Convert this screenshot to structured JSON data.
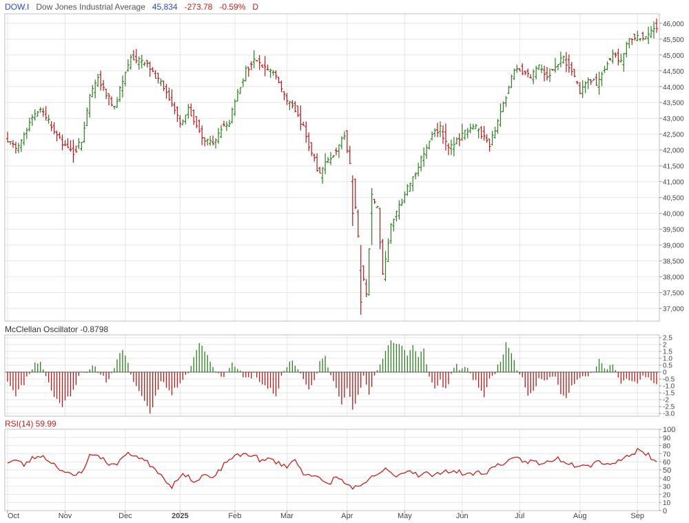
{
  "header": {
    "symbol": "DOW.I",
    "name": "Dow Jones Industrial Average",
    "last": "45,834",
    "change": "-273.78",
    "change_pct": "-0.59%",
    "period": "D"
  },
  "mcclellan": {
    "title": "McClellan Oscillator -0.8798"
  },
  "rsi": {
    "title": "RSI(14) 59.99"
  },
  "colors": {
    "up": "#2a7d1e",
    "down": "#b01818",
    "rsi_line": "#c81e1e",
    "grid": "#e6e6e6",
    "frame": "#bfbfbf"
  },
  "chart_data": [
    {
      "type": "bar",
      "subtype": "ohlc",
      "series_name": "DOW.I",
      "x_ticks": [
        "Oct",
        "Nov",
        "Dec",
        "2025",
        "Feb",
        "Mar",
        "Apr",
        "May",
        "Jun",
        "Jul",
        "Aug",
        "Sep"
      ],
      "y_ticks": [
        "46,000",
        "45,500",
        "45,000",
        "44,500",
        "44,000",
        "43,500",
        "43,000",
        "42,500",
        "42,000",
        "41,500",
        "41,000",
        "40,500",
        "40,000",
        "39,500",
        "39,000",
        "38,500",
        "38,000",
        "37,500",
        "37,000"
      ],
      "ylim": [
        36600,
        46300
      ],
      "y_axis_side": "right",
      "grid": true,
      "close_anchors": [
        [
          0,
          42300
        ],
        [
          3,
          42000
        ],
        [
          6,
          42500
        ],
        [
          9,
          43100
        ],
        [
          12,
          43250
        ],
        [
          15,
          42900
        ],
        [
          18,
          42500
        ],
        [
          21,
          42100
        ],
        [
          24,
          41900
        ],
        [
          27,
          42300
        ],
        [
          30,
          43700
        ],
        [
          33,
          44300
        ],
        [
          36,
          43800
        ],
        [
          39,
          43300
        ],
        [
          42,
          44200
        ],
        [
          45,
          44900
        ],
        [
          48,
          44800
        ],
        [
          51,
          44700
        ],
        [
          54,
          44300
        ],
        [
          57,
          44000
        ],
        [
          60,
          43500
        ],
        [
          63,
          42800
        ],
        [
          66,
          43300
        ],
        [
          69,
          42800
        ],
        [
          72,
          42300
        ],
        [
          75,
          42200
        ],
        [
          78,
          42700
        ],
        [
          81,
          42900
        ],
        [
          84,
          43800
        ],
        [
          87,
          44500
        ],
        [
          90,
          44850
        ],
        [
          93,
          44600
        ],
        [
          96,
          44500
        ],
        [
          99,
          44200
        ],
        [
          102,
          43500
        ],
        [
          105,
          43300
        ],
        [
          108,
          42700
        ],
        [
          111,
          41900
        ],
        [
          114,
          41200
        ],
        [
          117,
          41700
        ],
        [
          120,
          42000
        ],
        [
          123,
          42500
        ],
        [
          126,
          41100
        ],
        [
          129,
          38300
        ],
        [
          131,
          37500
        ],
        [
          133,
          40400
        ],
        [
          135,
          40200
        ],
        [
          137,
          38000
        ],
        [
          140,
          39600
        ],
        [
          143,
          40200
        ],
        [
          146,
          40800
        ],
        [
          149,
          41300
        ],
        [
          152,
          41900
        ],
        [
          155,
          42500
        ],
        [
          158,
          42700
        ],
        [
          161,
          42000
        ],
        [
          164,
          42300
        ],
        [
          167,
          42600
        ],
        [
          170,
          42800
        ],
        [
          173,
          42500
        ],
        [
          176,
          42200
        ],
        [
          179,
          42900
        ],
        [
          182,
          43700
        ],
        [
          185,
          44600
        ],
        [
          188,
          44500
        ],
        [
          191,
          44300
        ],
        [
          194,
          44600
        ],
        [
          197,
          44300
        ],
        [
          200,
          44700
        ],
        [
          203,
          44900
        ],
        [
          206,
          44500
        ],
        [
          209,
          43800
        ],
        [
          212,
          44300
        ],
        [
          215,
          44100
        ],
        [
          218,
          44600
        ],
        [
          221,
          45100
        ],
        [
          224,
          44800
        ],
        [
          227,
          45500
        ],
        [
          230,
          45600
        ],
        [
          233,
          45500
        ],
        [
          236,
          45900
        ],
        [
          237,
          45834
        ]
      ],
      "ohlc_sample": [
        [
          126,
          41000,
          41200,
          39600,
          40000
        ],
        [
          129,
          38200,
          39000,
          36800,
          37200
        ],
        [
          133,
          40000,
          40800,
          39000,
          40600
        ],
        [
          237,
          46000,
          46150,
          45700,
          45834
        ]
      ]
    },
    {
      "type": "bar",
      "series_name": "McClellan Oscillator",
      "y_ticks": [
        "2.5",
        "2",
        "1.5",
        "1.0",
        "0.5",
        "0",
        "-0.5",
        "-1.0",
        "-1.5",
        "-2",
        "-2.5",
        "-3.0"
      ],
      "ylim": [
        -3.2,
        2.7
      ],
      "last_value": -0.8798,
      "value_anchors": [
        [
          0,
          -0.6
        ],
        [
          3,
          -1.6
        ],
        [
          6,
          -0.8
        ],
        [
          8,
          0.0
        ],
        [
          10,
          0.6
        ],
        [
          12,
          0.8
        ],
        [
          14,
          -0.3
        ],
        [
          17,
          -1.8
        ],
        [
          20,
          -2.4
        ],
        [
          23,
          -1.6
        ],
        [
          25,
          -0.8
        ],
        [
          27,
          0.2
        ],
        [
          29,
          -0.2
        ],
        [
          31,
          0.4
        ],
        [
          33,
          0.1
        ],
        [
          36,
          -0.6
        ],
        [
          38,
          -0.2
        ],
        [
          40,
          1.0
        ],
        [
          42,
          1.5
        ],
        [
          44,
          0.6
        ],
        [
          46,
          -0.7
        ],
        [
          48,
          -1.4
        ],
        [
          50,
          -2.0
        ],
        [
          52,
          -3.0
        ],
        [
          54,
          -1.8
        ],
        [
          56,
          -0.5
        ],
        [
          58,
          -1.1
        ],
        [
          60,
          -1.6
        ],
        [
          62,
          -1.0
        ],
        [
          64,
          -0.4
        ],
        [
          66,
          0.0
        ],
        [
          68,
          1.0
        ],
        [
          70,
          2.2
        ],
        [
          72,
          1.6
        ],
        [
          74,
          0.8
        ],
        [
          76,
          0.2
        ],
        [
          78,
          -0.5
        ],
        [
          80,
          0.1
        ],
        [
          82,
          0.6
        ],
        [
          84,
          0.3
        ],
        [
          86,
          -0.4
        ],
        [
          88,
          -0.5
        ],
        [
          90,
          -0.1
        ],
        [
          92,
          -0.6
        ],
        [
          94,
          -1.1
        ],
        [
          96,
          -1.3
        ],
        [
          98,
          -1.9
        ],
        [
          100,
          -0.3
        ],
        [
          102,
          0.5
        ],
        [
          104,
          0.9
        ],
        [
          106,
          0.2
        ],
        [
          108,
          -0.5
        ],
        [
          110,
          -1.4
        ],
        [
          112,
          -0.6
        ],
        [
          114,
          0.7
        ],
        [
          116,
          1.1
        ],
        [
          118,
          -0.2
        ],
        [
          120,
          -1.0
        ],
        [
          122,
          -2.2
        ],
        [
          124,
          -1.2
        ],
        [
          126,
          -2.7
        ],
        [
          128,
          -1.8
        ],
        [
          130,
          -0.4
        ],
        [
          132,
          -1.6
        ],
        [
          134,
          -0.3
        ],
        [
          136,
          0.6
        ],
        [
          138,
          1.6
        ],
        [
          140,
          2.3
        ],
        [
          142,
          2.0
        ],
        [
          144,
          2.0
        ],
        [
          146,
          1.2
        ],
        [
          148,
          1.9
        ],
        [
          150,
          1.0
        ],
        [
          152,
          1.8
        ],
        [
          154,
          -0.4
        ],
        [
          156,
          -1.2
        ],
        [
          158,
          -0.6
        ],
        [
          160,
          -1.3
        ],
        [
          162,
          -0.2
        ],
        [
          164,
          0.5
        ],
        [
          166,
          0.1
        ],
        [
          168,
          0.4
        ],
        [
          170,
          -0.5
        ],
        [
          172,
          -1.0
        ],
        [
          174,
          -1.7
        ],
        [
          176,
          -0.6
        ],
        [
          178,
          0.0
        ],
        [
          180,
          0.9
        ],
        [
          182,
          2.0
        ],
        [
          184,
          1.5
        ],
        [
          186,
          0.3
        ],
        [
          188,
          -0.4
        ],
        [
          190,
          -1.6
        ],
        [
          192,
          -1.3
        ],
        [
          194,
          -0.5
        ],
        [
          196,
          -0.6
        ],
        [
          198,
          -0.3
        ],
        [
          200,
          -0.5
        ],
        [
          202,
          -1.5
        ],
        [
          204,
          -2.0
        ],
        [
          206,
          -0.8
        ],
        [
          208,
          -0.6
        ],
        [
          210,
          -0.3
        ],
        [
          212,
          -0.4
        ],
        [
          214,
          0.0
        ],
        [
          216,
          0.9
        ],
        [
          218,
          0.2
        ],
        [
          220,
          0.5
        ],
        [
          222,
          0.3
        ],
        [
          224,
          -0.9
        ],
        [
          226,
          -0.6
        ],
        [
          228,
          -0.5
        ],
        [
          230,
          -1.0
        ],
        [
          232,
          -0.4
        ],
        [
          234,
          -0.3
        ],
        [
          236,
          -0.8
        ],
        [
          237,
          -0.8798
        ]
      ]
    },
    {
      "type": "line",
      "series_name": "RSI(14)",
      "y_ticks": [
        "100",
        "90",
        "80",
        "70",
        "60",
        "50",
        "40",
        "30",
        "20",
        "10",
        "0"
      ],
      "ylim": [
        0,
        100
      ],
      "last_value": 59.99,
      "value_anchors": [
        [
          0,
          60
        ],
        [
          3,
          62
        ],
        [
          6,
          56
        ],
        [
          9,
          64
        ],
        [
          12,
          68
        ],
        [
          15,
          62
        ],
        [
          18,
          55
        ],
        [
          21,
          47
        ],
        [
          24,
          42
        ],
        [
          27,
          48
        ],
        [
          30,
          67
        ],
        [
          33,
          69
        ],
        [
          36,
          60
        ],
        [
          39,
          55
        ],
        [
          42,
          66
        ],
        [
          45,
          70
        ],
        [
          48,
          66
        ],
        [
          51,
          59
        ],
        [
          54,
          52
        ],
        [
          57,
          40
        ],
        [
          60,
          30
        ],
        [
          63,
          44
        ],
        [
          66,
          41
        ],
        [
          69,
          36
        ],
        [
          72,
          45
        ],
        [
          75,
          38
        ],
        [
          78,
          52
        ],
        [
          81,
          64
        ],
        [
          84,
          67
        ],
        [
          87,
          70
        ],
        [
          90,
          68
        ],
        [
          93,
          60
        ],
        [
          96,
          64
        ],
        [
          99,
          58
        ],
        [
          102,
          55
        ],
        [
          105,
          62
        ],
        [
          108,
          46
        ],
        [
          111,
          45
        ],
        [
          114,
          38
        ],
        [
          117,
          32
        ],
        [
          120,
          42
        ],
        [
          123,
          34
        ],
        [
          126,
          29
        ],
        [
          129,
          28
        ],
        [
          132,
          38
        ],
        [
          135,
          45
        ],
        [
          138,
          50
        ],
        [
          141,
          43
        ],
        [
          144,
          46
        ],
        [
          147,
          50
        ],
        [
          150,
          44
        ],
        [
          153,
          46
        ],
        [
          156,
          42
        ],
        [
          159,
          50
        ],
        [
          162,
          48
        ],
        [
          165,
          47
        ],
        [
          168,
          44
        ],
        [
          171,
          47
        ],
        [
          174,
          46
        ],
        [
          177,
          52
        ],
        [
          180,
          58
        ],
        [
          183,
          60
        ],
        [
          186,
          64
        ],
        [
          189,
          60
        ],
        [
          192,
          61
        ],
        [
          195,
          56
        ],
        [
          198,
          62
        ],
        [
          201,
          64
        ],
        [
          204,
          60
        ],
        [
          207,
          56
        ],
        [
          210,
          58
        ],
        [
          213,
          56
        ],
        [
          216,
          62
        ],
        [
          219,
          57
        ],
        [
          222,
          60
        ],
        [
          225,
          64
        ],
        [
          228,
          70
        ],
        [
          231,
          76
        ],
        [
          234,
          68
        ],
        [
          237,
          60
        ]
      ]
    }
  ]
}
